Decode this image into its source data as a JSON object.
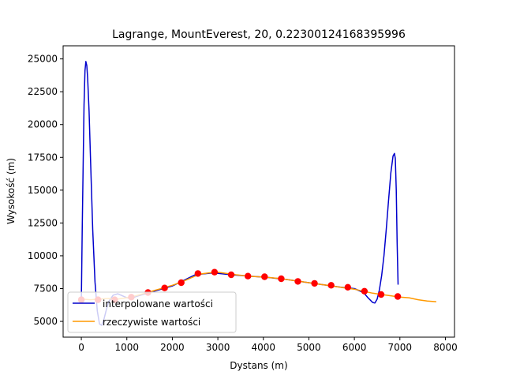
{
  "chart_data": {
    "type": "line",
    "title": "Lagrange, MountEverest, 20, 0.22300124168395996",
    "xlabel": "Dystans (m)",
    "ylabel": "Wysokość (m)",
    "xlim": [
      -400,
      8200
    ],
    "ylim": [
      3800,
      26000
    ],
    "xticks": [
      0,
      1000,
      2000,
      3000,
      4000,
      5000,
      6000,
      7000,
      8000
    ],
    "yticks": [
      5000,
      7500,
      10000,
      12500,
      15000,
      17500,
      20000,
      22500,
      25000
    ],
    "grid": false,
    "legend_position": "lower-left",
    "series": [
      {
        "name": "interpolowane wartości",
        "color": "#0000cc",
        "x": [
          0,
          20,
          40,
          60,
          80,
          100,
          120,
          140,
          170,
          200,
          250,
          300,
          350,
          400,
          450,
          500,
          550,
          600,
          700,
          800,
          900,
          1000,
          1100,
          1200,
          1500,
          2000,
          2500,
          2900,
          3300,
          3700,
          4100,
          4500,
          4900,
          5300,
          5700,
          6000,
          6200,
          6300,
          6400,
          6450,
          6500,
          6550,
          6600,
          6650,
          6700,
          6750,
          6800,
          6850,
          6880,
          6900,
          6920,
          6940,
          6960
        ],
        "y": [
          6600,
          12000,
          17000,
          21500,
          24100,
          24800,
          24500,
          23500,
          21000,
          17600,
          12000,
          8000,
          5800,
          4800,
          4700,
          5200,
          5900,
          6500,
          7000,
          7100,
          6950,
          6800,
          6750,
          6900,
          7200,
          7700,
          8550,
          8700,
          8550,
          8450,
          8350,
          8200,
          8000,
          7800,
          7600,
          7500,
          7200,
          6800,
          6450,
          6400,
          6700,
          7400,
          8500,
          10000,
          12000,
          14200,
          16300,
          17600,
          17800,
          17400,
          15000,
          11000,
          7800
        ]
      },
      {
        "name": "rzeczywiste wartości",
        "color": "#ff9900",
        "x": [
          0,
          200,
          400,
          600,
          800,
          1000,
          1200,
          1400,
          1600,
          1800,
          2000,
          2200,
          2400,
          2600,
          2800,
          3000,
          3200,
          3400,
          3600,
          3800,
          4000,
          4200,
          4400,
          4600,
          4800,
          5000,
          5200,
          5400,
          5600,
          5800,
          6000,
          6200,
          6400,
          6600,
          6800,
          7000,
          7200,
          7400,
          7600,
          7800
        ],
        "y": [
          6700,
          6650,
          6700,
          6750,
          6700,
          6800,
          6950,
          7150,
          7350,
          7550,
          7750,
          8000,
          8300,
          8600,
          8700,
          8750,
          8650,
          8550,
          8480,
          8420,
          8380,
          8320,
          8250,
          8150,
          8050,
          7950,
          7850,
          7750,
          7650,
          7550,
          7450,
          7300,
          7150,
          7050,
          6950,
          6850,
          6800,
          6650,
          6550,
          6500
        ]
      }
    ],
    "nodes": {
      "color": "#ff0000",
      "x": [
        0,
        366,
        732,
        1098,
        1464,
        1830,
        2196,
        2562,
        2928,
        3294,
        3660,
        4026,
        4392,
        4758,
        5124,
        5490,
        5856,
        6222,
        6588,
        6954
      ],
      "y": [
        6650,
        6650,
        6650,
        6850,
        7200,
        7550,
        7950,
        8650,
        8750,
        8550,
        8450,
        8400,
        8250,
        8050,
        7900,
        7750,
        7600,
        7300,
        7050,
        6900
      ]
    }
  }
}
